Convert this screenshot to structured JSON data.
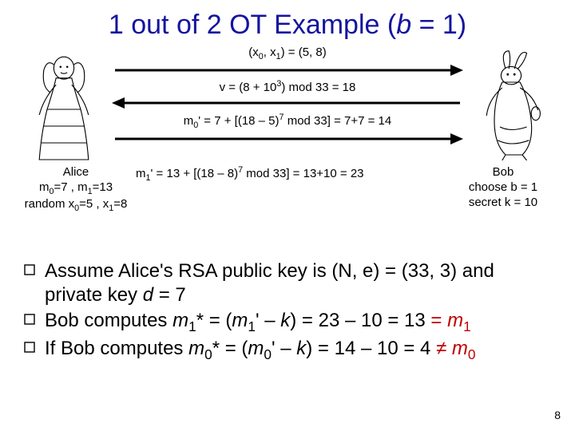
{
  "title_pre": "1 out of 2 OT Example (",
  "title_var": "b",
  "title_post": " = 1)",
  "diagram": {
    "row1_label": "(x<span class='sub'>0</span>, x<span class='sub'>1</span>) = (5, 8)",
    "row2_label": "v = (8 + 10<span class='sup'>3</span>) mod 33 = 18",
    "row3_label": "m<span class='sub'>0</span>' = 7 + [(18 – 5)<span class='sup'>7</span> mod 33] = 7+7 = 14",
    "m1_label": "m<span class='sub'>1</span>' = 13 + [(18 – 8)<span class='sup'>7</span> mod 33] = 13+10 = 23",
    "alice_caption": "Alice<br>m<span class='sub'>0</span>=7 , m<span class='sub'>1</span>=13<br>random x<span class='sub'>0</span>=5 , x<span class='sub'>1</span>=8",
    "bob_caption": "Bob<br>choose b = 1<br>secret k = 10"
  },
  "bullets": [
    "Assume Alice's RSA public key is (N, e) = (33, 3) and private key <span class='italic'>d</span> = 7",
    "Bob computes <span class='italic'>m</span><span class='sub'>1</span>* = (<span class='italic'>m</span><span class='sub'>1</span>' – <span class='italic'>k</span>) = 23 – 10 = 13 <span class='red'>= <span class='italic'>m</span><span class='sub'>1</span></span>",
    "If Bob computes <span class='italic'>m</span><span class='sub'>0</span>* = (<span class='italic'>m</span><span class='sub'>0</span>' – <span class='italic'>k</span>) = 14 – 10 = 4 <span class='red'>≠ <span class='italic'>m</span><span class='sub'>0</span></span>"
  ],
  "pagenum": "8",
  "colors": {
    "title": "#1414a0",
    "accent": "#c00000",
    "bg": "#ffffff"
  }
}
